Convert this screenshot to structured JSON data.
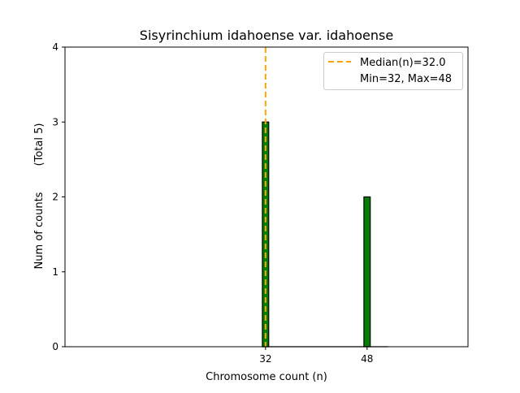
{
  "chart_data": {
    "type": "bar",
    "title": "Sisyrinchium idahoense var. idahoense",
    "xlabel": "Chromosome count (n)",
    "ylabel": "Num of counts",
    "ylabel_total": "(Total 5)",
    "x": [
      32,
      48
    ],
    "values": [
      3,
      2
    ],
    "bar_width": 1,
    "xlim": [
      0.4,
      63.9
    ],
    "ylim": [
      0,
      4
    ],
    "xticks": [
      32,
      48
    ],
    "yticks": [
      0,
      1,
      2,
      3,
      4
    ],
    "median": 32.0,
    "legend": {
      "placement": "top-right",
      "entries": [
        "Median(n)=32.0",
        "Min=32, Max=48"
      ]
    },
    "colors": {
      "bar": "#008000",
      "bar_edge": "#000000",
      "median": "#FFA500"
    },
    "grid": false
  }
}
